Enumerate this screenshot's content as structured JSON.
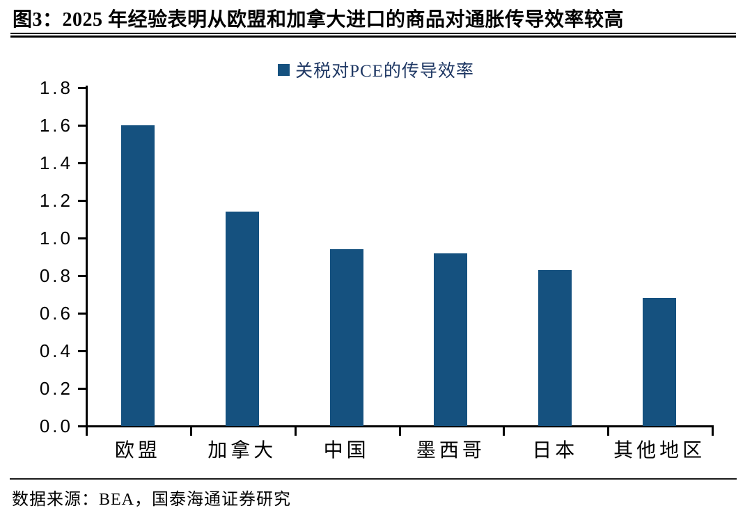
{
  "header": {
    "title": "图3：2025 年经验表明从欧盟和加拿大进口的商品对通胀传导效率较高"
  },
  "legend": {
    "label": "关税对PCE的传导效率"
  },
  "footer": {
    "source": "数据来源：BEA，国泰海通证券研究"
  },
  "colors": {
    "bar": "#15517f",
    "legend_text": "#1f3864",
    "axis": "#000000"
  },
  "chart_data": {
    "type": "bar",
    "title": "关税对PCE的传导效率",
    "series_name": "关税对PCE的传导效率",
    "categories": [
      "欧盟",
      "加拿大",
      "中国",
      "墨西哥",
      "日本",
      "其他地区"
    ],
    "values": [
      1.6,
      1.14,
      0.94,
      0.92,
      0.83,
      0.68
    ],
    "xlabel": "",
    "ylabel": "",
    "ylim": [
      0.0,
      1.8
    ],
    "y_ticks": [
      0.0,
      0.2,
      0.4,
      0.6,
      0.8,
      1.0,
      1.2,
      1.4,
      1.6,
      1.8
    ],
    "y_tick_format": "one_decimal",
    "grid": false,
    "legend_position": "top-center",
    "bar_color": "#15517f"
  }
}
